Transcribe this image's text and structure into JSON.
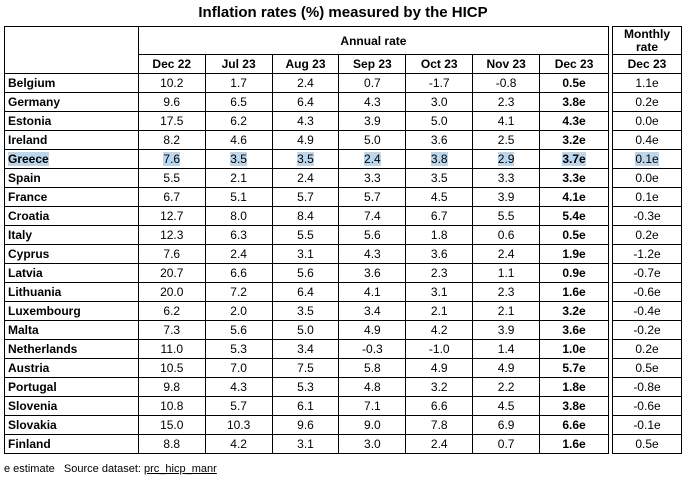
{
  "title": "Inflation rates (%) measured by the HICP",
  "annual_header": "Annual rate",
  "monthly_header_line1": "Monthly",
  "monthly_header_line2": "rate",
  "columns": [
    "Dec 22",
    "Jul 23",
    "Aug 23",
    "Sep 23",
    "Oct 23",
    "Nov 23",
    "Dec 23"
  ],
  "monthly_column": "Dec 23",
  "rows": [
    {
      "country": "Belgium",
      "values": [
        "10.2",
        "1.7",
        "2.4",
        "0.7",
        "-1.7",
        "-0.8",
        "0.5e"
      ],
      "monthly": "1.1e",
      "highlight": false
    },
    {
      "country": "Germany",
      "values": [
        "9.6",
        "6.5",
        "6.4",
        "4.3",
        "3.0",
        "2.3",
        "3.8e"
      ],
      "monthly": "0.2e",
      "highlight": false
    },
    {
      "country": "Estonia",
      "values": [
        "17.5",
        "6.2",
        "4.3",
        "3.9",
        "5.0",
        "4.1",
        "4.3e"
      ],
      "monthly": "0.0e",
      "highlight": false
    },
    {
      "country": "Ireland",
      "values": [
        "8.2",
        "4.6",
        "4.9",
        "5.0",
        "3.6",
        "2.5",
        "3.2e"
      ],
      "monthly": "0.4e",
      "highlight": false
    },
    {
      "country": "Greece",
      "values": [
        "7.6",
        "3.5",
        "3.5",
        "2.4",
        "3.8",
        "2.9",
        "3.7e"
      ],
      "monthly": "0.1e",
      "highlight": true
    },
    {
      "country": "Spain",
      "values": [
        "5.5",
        "2.1",
        "2.4",
        "3.3",
        "3.5",
        "3.3",
        "3.3e"
      ],
      "monthly": "0.0e",
      "highlight": false
    },
    {
      "country": "France",
      "values": [
        "6.7",
        "5.1",
        "5.7",
        "5.7",
        "4.5",
        "3.9",
        "4.1e"
      ],
      "monthly": "0.1e",
      "highlight": false
    },
    {
      "country": "Croatia",
      "values": [
        "12.7",
        "8.0",
        "8.4",
        "7.4",
        "6.7",
        "5.5",
        "5.4e"
      ],
      "monthly": "-0.3e",
      "highlight": false
    },
    {
      "country": "Italy",
      "values": [
        "12.3",
        "6.3",
        "5.5",
        "5.6",
        "1.8",
        "0.6",
        "0.5e"
      ],
      "monthly": "0.2e",
      "highlight": false
    },
    {
      "country": "Cyprus",
      "values": [
        "7.6",
        "2.4",
        "3.1",
        "4.3",
        "3.6",
        "2.4",
        "1.9e"
      ],
      "monthly": "-1.2e",
      "highlight": false
    },
    {
      "country": "Latvia",
      "values": [
        "20.7",
        "6.6",
        "5.6",
        "3.6",
        "2.3",
        "1.1",
        "0.9e"
      ],
      "monthly": "-0.7e",
      "highlight": false
    },
    {
      "country": "Lithuania",
      "values": [
        "20.0",
        "7.2",
        "6.4",
        "4.1",
        "3.1",
        "2.3",
        "1.6e"
      ],
      "monthly": "-0.6e",
      "highlight": false
    },
    {
      "country": "Luxembourg",
      "values": [
        "6.2",
        "2.0",
        "3.5",
        "3.4",
        "2.1",
        "2.1",
        "3.2e"
      ],
      "monthly": "-0.4e",
      "highlight": false
    },
    {
      "country": "Malta",
      "values": [
        "7.3",
        "5.6",
        "5.0",
        "4.9",
        "4.2",
        "3.9",
        "3.6e"
      ],
      "monthly": "-0.2e",
      "highlight": false
    },
    {
      "country": "Netherlands",
      "values": [
        "11.0",
        "5.3",
        "3.4",
        "-0.3",
        "-1.0",
        "1.4",
        "1.0e"
      ],
      "monthly": "0.2e",
      "highlight": false
    },
    {
      "country": "Austria",
      "values": [
        "10.5",
        "7.0",
        "7.5",
        "5.8",
        "4.9",
        "4.9",
        "5.7e"
      ],
      "monthly": "0.5e",
      "highlight": false
    },
    {
      "country": "Portugal",
      "values": [
        "9.8",
        "4.3",
        "5.3",
        "4.8",
        "3.2",
        "2.2",
        "1.8e"
      ],
      "monthly": "-0.8e",
      "highlight": false
    },
    {
      "country": "Slovenia",
      "values": [
        "10.8",
        "5.7",
        "6.1",
        "7.1",
        "6.6",
        "4.5",
        "3.8e"
      ],
      "monthly": "-0.6e",
      "highlight": false
    },
    {
      "country": "Slovakia",
      "values": [
        "15.0",
        "10.3",
        "9.6",
        "9.0",
        "7.8",
        "6.9",
        "6.6e"
      ],
      "monthly": "-0.1e",
      "highlight": false
    },
    {
      "country": "Finland",
      "values": [
        "8.8",
        "4.2",
        "3.1",
        "3.0",
        "2.4",
        "0.7",
        "1.6e"
      ],
      "monthly": "0.5e",
      "highlight": false
    }
  ],
  "footer": {
    "note": "e estimate   Source dataset: ",
    "link": "prc_hicp_manr"
  }
}
